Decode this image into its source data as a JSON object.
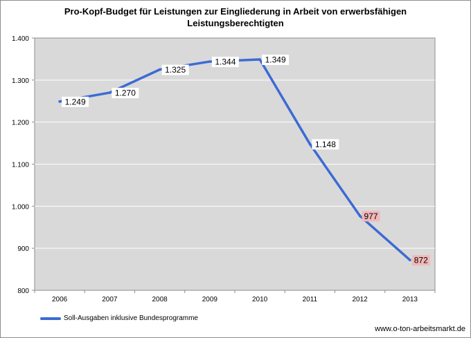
{
  "title_lines": [
    "Pro-Kopf-Budget für Leistungen zur Eingliederung in Arbeit von erwerbsfähigen",
    "Leistungsberechtigten"
  ],
  "source": "www.o-ton-arbeitsmarkt.de",
  "colors": {
    "line": "#3b6bd4",
    "plot_bg": "#d9d9d9",
    "grid": "#ffffff",
    "label_bg": "#ffffff",
    "label_highlight_bg": "#f2b8b8"
  },
  "chart_data": {
    "type": "line",
    "title": "Pro-Kopf-Budget für Leistungen zur Eingliederung in Arbeit von erwerbsfähigen Leistungsberechtigten",
    "xlabel": "",
    "ylabel": "",
    "categories": [
      "2006",
      "2007",
      "2008",
      "2009",
      "2010",
      "2011",
      "2012",
      "2013"
    ],
    "ylim": [
      800,
      1400
    ],
    "yticks": [
      800,
      900,
      1000,
      1100,
      1200,
      1300,
      1400
    ],
    "ytick_labels": [
      "800",
      "900",
      "1.000",
      "1.100",
      "1.200",
      "1.300",
      "1.400"
    ],
    "grid": true,
    "legend_position": "bottom-left",
    "series": [
      {
        "name": "Soll-Ausgaben inklusive Bundesprogramme",
        "values": [
          1249,
          1270,
          1325,
          1344,
          1349,
          1148,
          977,
          872
        ],
        "data_labels": [
          "1.249",
          "1.270",
          "1.325",
          "1.344",
          "1.349",
          "1.148",
          "977",
          "872"
        ],
        "highlighted": [
          false,
          false,
          false,
          false,
          false,
          false,
          true,
          true
        ]
      }
    ]
  }
}
